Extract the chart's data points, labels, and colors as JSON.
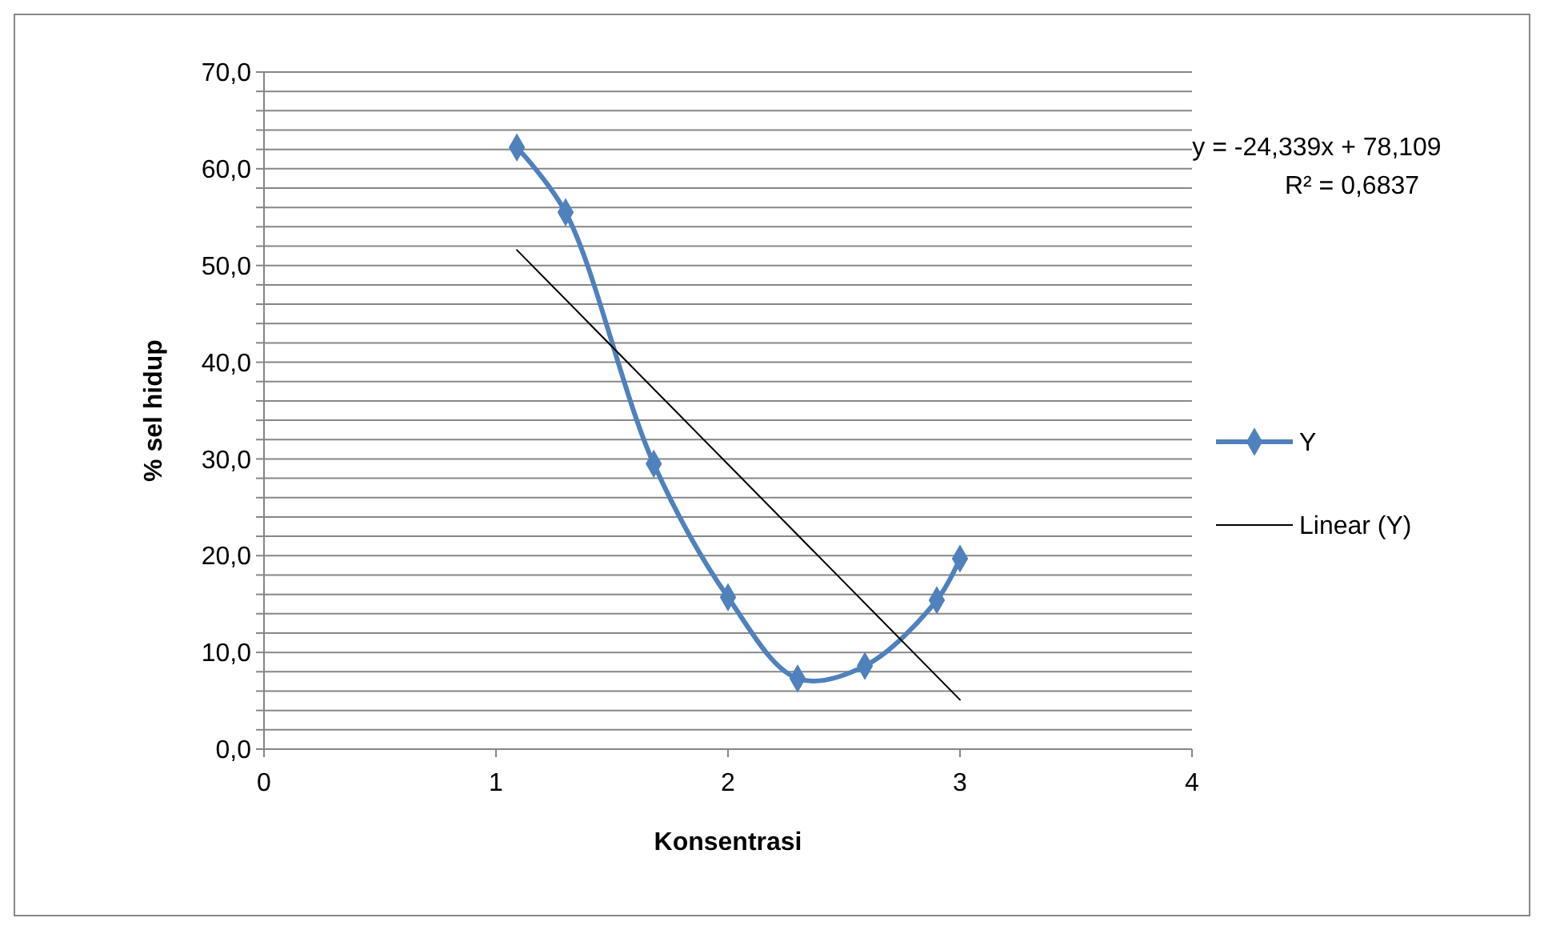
{
  "chart_data": {
    "type": "line",
    "xlabel": "Konsentrasi",
    "ylabel": "% sel hidup",
    "xlim": [
      0,
      4
    ],
    "xticks": [
      0,
      1,
      2,
      3,
      4
    ],
    "ylim": [
      0,
      70
    ],
    "yticks": [
      {
        "value": 0,
        "label": "0,0"
      },
      {
        "value": 2,
        "label": null
      },
      {
        "value": 4,
        "label": null
      },
      {
        "value": 6,
        "label": null
      },
      {
        "value": 8,
        "label": null
      },
      {
        "value": 10,
        "label": "10,0"
      },
      {
        "value": 12,
        "label": null
      },
      {
        "value": 14,
        "label": null
      },
      {
        "value": 16,
        "label": null
      },
      {
        "value": 18,
        "label": null
      },
      {
        "value": 20,
        "label": "20,0"
      },
      {
        "value": 22,
        "label": null
      },
      {
        "value": 24,
        "label": null
      },
      {
        "value": 26,
        "label": null
      },
      {
        "value": 28,
        "label": null
      },
      {
        "value": 30,
        "label": "30,0"
      },
      {
        "value": 32,
        "label": null
      },
      {
        "value": 34,
        "label": null
      },
      {
        "value": 36,
        "label": null
      },
      {
        "value": 38,
        "label": null
      },
      {
        "value": 40,
        "label": "40,0"
      },
      {
        "value": 42,
        "label": null
      },
      {
        "value": 44,
        "label": null
      },
      {
        "value": 46,
        "label": null
      },
      {
        "value": 48,
        "label": null
      },
      {
        "value": 50,
        "label": "50,0"
      },
      {
        "value": 52,
        "label": null
      },
      {
        "value": 54,
        "label": null
      },
      {
        "value": 56,
        "label": null
      },
      {
        "value": 58,
        "label": null
      },
      {
        "value": 60,
        "label": "60,0"
      },
      {
        "value": 62,
        "label": null
      },
      {
        "value": 64,
        "label": null
      },
      {
        "value": 66,
        "label": null
      },
      {
        "value": 68,
        "label": null
      },
      {
        "value": 70,
        "label": "70,0"
      }
    ],
    "grid": "y",
    "legend": "right",
    "series": [
      {
        "name": "Y",
        "color": "#4f81bd",
        "marker": "diamond",
        "x": [
          1.09,
          1.3,
          1.68,
          2.0,
          2.3,
          2.59,
          2.9,
          3.0
        ],
        "values": [
          62.2,
          55.5,
          29.5,
          15.7,
          7.3,
          8.6,
          15.4,
          19.7
        ]
      },
      {
        "name": "Linear (Y)",
        "color": "#000000",
        "marker": "none",
        "x": [
          1.09,
          3.0
        ],
        "values": [
          51.6,
          5.1
        ]
      }
    ],
    "annotations": [
      "y = -24,339x + 78,109",
      "R² = 0,6837"
    ]
  }
}
